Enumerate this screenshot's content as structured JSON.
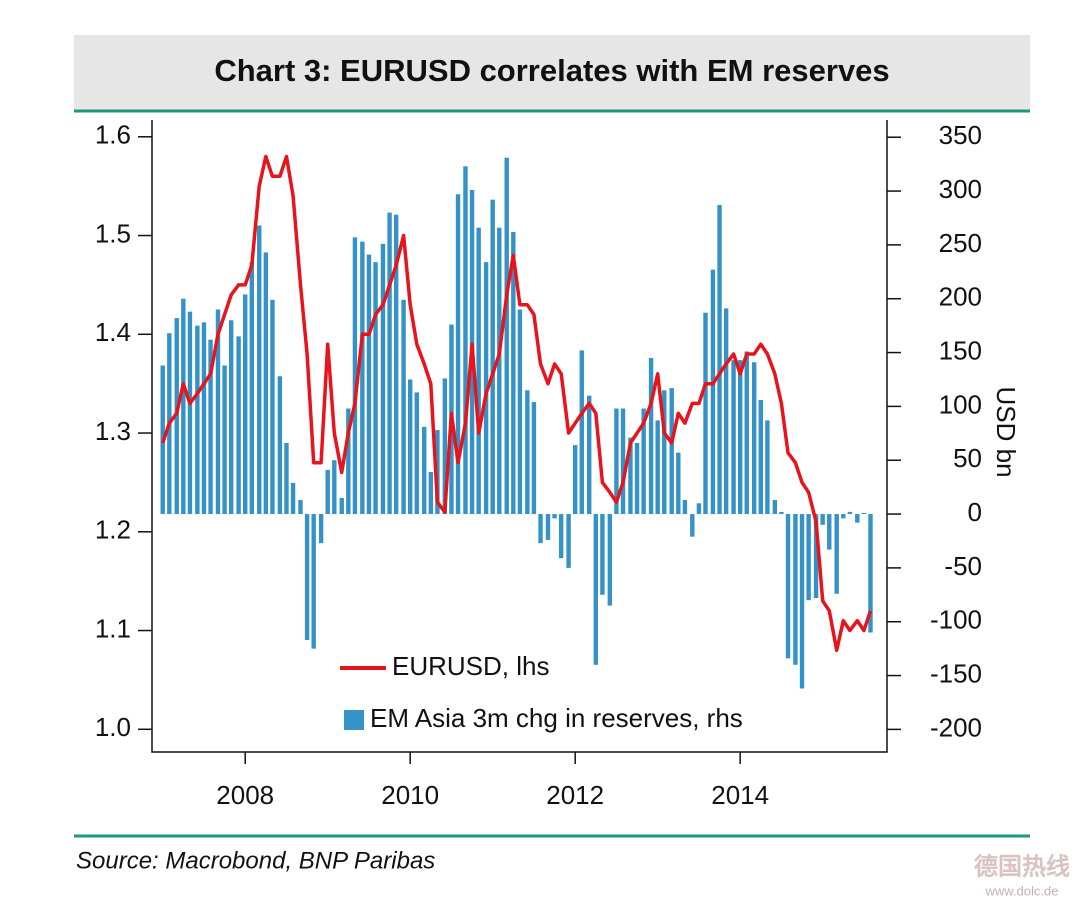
{
  "chart_data": {
    "type": "combo",
    "title": "Chart 3: EURUSD correlates with EM reserves",
    "y2_label": "USD bn",
    "source": "Source: Macrobond, BNP Paribas",
    "watermark": "德国热线",
    "watermark_url": "www.dolc.de",
    "x": [
      2007.0,
      2007.08,
      2007.17,
      2007.25,
      2007.33,
      2007.42,
      2007.5,
      2007.58,
      2007.67,
      2007.75,
      2007.83,
      2007.92,
      2008.0,
      2008.08,
      2008.17,
      2008.25,
      2008.33,
      2008.42,
      2008.5,
      2008.58,
      2008.67,
      2008.75,
      2008.83,
      2008.92,
      2009.0,
      2009.08,
      2009.17,
      2009.25,
      2009.33,
      2009.42,
      2009.5,
      2009.58,
      2009.67,
      2009.75,
      2009.83,
      2009.92,
      2010.0,
      2010.08,
      2010.17,
      2010.25,
      2010.33,
      2010.42,
      2010.5,
      2010.58,
      2010.67,
      2010.75,
      2010.83,
      2010.92,
      2011.0,
      2011.08,
      2011.17,
      2011.25,
      2011.33,
      2011.42,
      2011.5,
      2011.58,
      2011.67,
      2011.75,
      2011.83,
      2011.92,
      2012.0,
      2012.08,
      2012.17,
      2012.25,
      2012.33,
      2012.42,
      2012.5,
      2012.58,
      2012.67,
      2012.75,
      2012.83,
      2012.92,
      2013.0,
      2013.08,
      2013.17,
      2013.25,
      2013.33,
      2013.42,
      2013.5,
      2013.58,
      2013.67,
      2013.75,
      2013.83,
      2013.92,
      2014.0,
      2014.08,
      2014.17,
      2014.25,
      2014.33,
      2014.42,
      2014.5,
      2014.58,
      2014.67,
      2014.75,
      2014.83,
      2014.92,
      2015.0,
      2015.08,
      2015.17,
      2015.25,
      2015.33,
      2015.42,
      2015.5,
      2015.58
    ],
    "series": [
      {
        "name": "EM Asia 3m chg in reserves, rhs",
        "type": "bar",
        "axis": "y2",
        "color": "#3592c6",
        "values": [
          138,
          168,
          182,
          200,
          188,
          175,
          178,
          162,
          190,
          138,
          180,
          165,
          204,
          234,
          268,
          243,
          199,
          128,
          66,
          29,
          13,
          -117,
          -125,
          -27,
          41,
          50,
          15,
          98,
          257,
          253,
          241,
          234,
          251,
          280,
          278,
          199,
          125,
          113,
          81,
          39,
          78,
          126,
          176,
          297,
          323,
          301,
          266,
          234,
          292,
          266,
          331,
          262,
          190,
          115,
          104,
          -27,
          -24,
          -4,
          -41,
          -50,
          64,
          152,
          110,
          -140,
          -75,
          -85,
          98,
          98,
          71,
          66,
          98,
          145,
          87,
          115,
          117,
          57,
          13,
          -21,
          10,
          187,
          227,
          287,
          191,
          143,
          143,
          151,
          141,
          106,
          87,
          13,
          2,
          -134,
          -140,
          -162,
          -80,
          -78,
          -10,
          -33,
          -74,
          -4,
          2,
          -8,
          1,
          -110
        ]
      },
      {
        "name": "EURUSD, lhs",
        "type": "line",
        "color": "#e8141c",
        "values": [
          1.29,
          1.31,
          1.32,
          1.35,
          1.33,
          1.34,
          1.35,
          1.36,
          1.4,
          1.42,
          1.44,
          1.45,
          1.45,
          1.47,
          1.55,
          1.58,
          1.56,
          1.56,
          1.58,
          1.54,
          1.45,
          1.38,
          1.27,
          1.27,
          1.39,
          1.3,
          1.26,
          1.3,
          1.33,
          1.4,
          1.4,
          1.42,
          1.43,
          1.45,
          1.47,
          1.5,
          1.43,
          1.39,
          1.37,
          1.35,
          1.23,
          1.22,
          1.32,
          1.27,
          1.31,
          1.39,
          1.3,
          1.34,
          1.36,
          1.38,
          1.44,
          1.48,
          1.43,
          1.43,
          1.42,
          1.37,
          1.35,
          1.37,
          1.36,
          1.3,
          1.31,
          1.32,
          1.33,
          1.32,
          1.25,
          1.24,
          1.23,
          1.25,
          1.29,
          1.3,
          1.31,
          1.33,
          1.36,
          1.3,
          1.29,
          1.32,
          1.31,
          1.33,
          1.33,
          1.35,
          1.35,
          1.36,
          1.37,
          1.38,
          1.36,
          1.38,
          1.38,
          1.39,
          1.38,
          1.36,
          1.33,
          1.28,
          1.27,
          1.25,
          1.24,
          1.21,
          1.13,
          1.12,
          1.08,
          1.11,
          1.1,
          1.11,
          1.1,
          1.12
        ]
      }
    ],
    "xlim": [
      2006.87,
      2015.78
    ],
    "xticks": [
      2008,
      2010,
      2012,
      2014
    ],
    "ylim": [
      0.977,
      1.617
    ],
    "yticks": [
      {
        "value": 1,
        "label": "1.0"
      },
      1.1,
      1.2,
      1.3,
      1.4,
      1.5,
      1.6
    ],
    "y2lim": [
      -221,
      366
    ],
    "y2ticks": [
      -200,
      -150,
      -100,
      -50,
      0,
      50,
      100,
      150,
      200,
      250,
      300,
      350
    ]
  }
}
